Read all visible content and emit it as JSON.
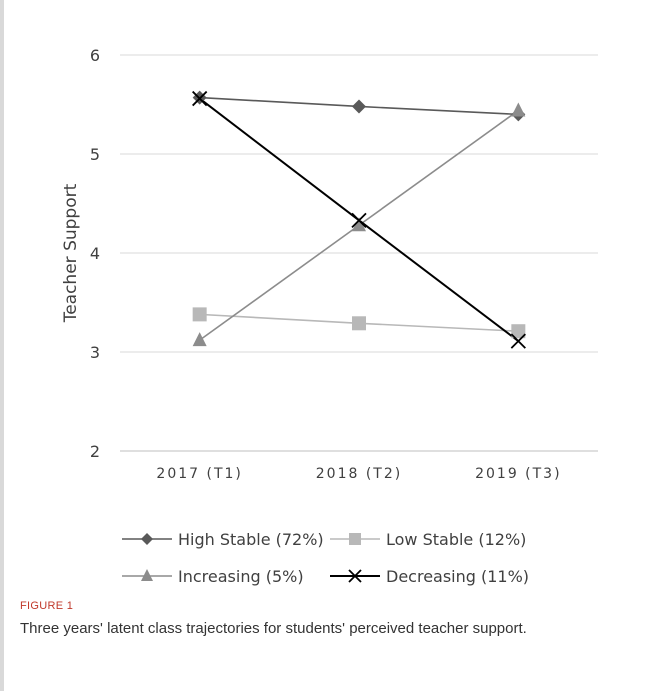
{
  "chart_data": {
    "type": "line",
    "categories": [
      "2017 (T1)",
      "2018 (T2)",
      "2019 (T3)"
    ],
    "ylabel": "Teacher Support",
    "ylim": [
      2,
      6
    ],
    "yticks": [
      2,
      3,
      4,
      5,
      6
    ],
    "grid": true,
    "legend_position": "bottom",
    "series": [
      {
        "name": "High Stable (72%)",
        "values": [
          5.57,
          5.48,
          5.4
        ],
        "color": "#595959",
        "marker": "diamond"
      },
      {
        "name": "Low Stable (12%)",
        "values": [
          3.38,
          3.29,
          3.21
        ],
        "color": "#b8b8b8",
        "marker": "square"
      },
      {
        "name": "Increasing (5%)",
        "values": [
          3.12,
          4.28,
          5.44
        ],
        "color": "#8c8c8c",
        "marker": "triangle"
      },
      {
        "name": "Decreasing (11%)",
        "values": [
          5.56,
          4.33,
          3.11
        ],
        "color": "#000000",
        "marker": "x"
      }
    ]
  },
  "figure": {
    "label": "FIGURE 1",
    "caption": "Three years' latent class trajectories for students' perceived teacher support."
  }
}
